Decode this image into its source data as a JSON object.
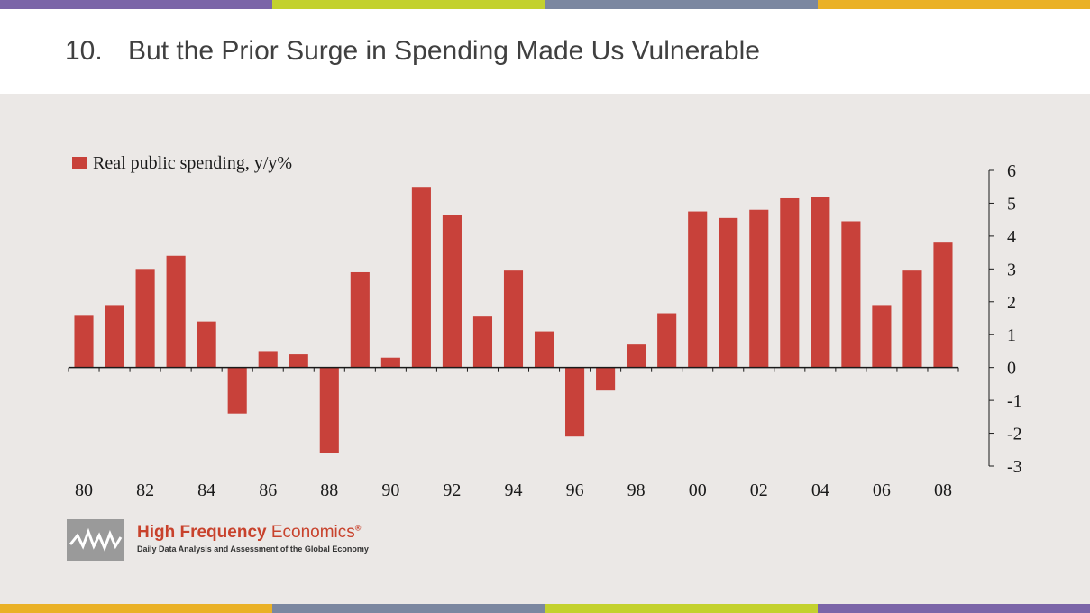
{
  "slide": {
    "number": "10.",
    "title": "But the Prior Surge in Spending Made Us Vulnerable"
  },
  "colors": {
    "bar": "#c8413a",
    "panel_background": "#ebe8e6",
    "strip": [
      "#7b65a8",
      "#c3d12e",
      "#7b87a0",
      "#eab126"
    ]
  },
  "logo": {
    "name_bold": "High Frequency",
    "name_light": "Economics",
    "mark": "®",
    "tagline": "Daily Data Analysis and Assessment of the Global Economy",
    "icon": "zigzag-line-icon"
  },
  "chart_data": {
    "type": "bar",
    "legend": "Real public spending, y/y%",
    "legend_position": "top-left",
    "x": [
      1980,
      1981,
      1982,
      1983,
      1984,
      1985,
      1986,
      1987,
      1988,
      1989,
      1990,
      1991,
      1992,
      1993,
      1994,
      1995,
      1996,
      1997,
      1998,
      1999,
      2000,
      2001,
      2002,
      2003,
      2004,
      2005,
      2006,
      2007,
      2008
    ],
    "values": [
      1.6,
      1.9,
      3.0,
      3.4,
      1.4,
      -1.4,
      0.5,
      0.4,
      -2.6,
      2.9,
      0.3,
      5.5,
      4.65,
      1.55,
      2.95,
      1.1,
      -2.1,
      -0.7,
      0.7,
      1.65,
      4.75,
      4.55,
      4.8,
      5.15,
      5.2,
      4.45,
      1.9,
      2.95,
      3.8
    ],
    "x_tick_labels": [
      "80",
      "82",
      "84",
      "86",
      "88",
      "90",
      "92",
      "94",
      "96",
      "98",
      "00",
      "02",
      "04",
      "06",
      "08"
    ],
    "y_ticks": [
      "6",
      "5",
      "4",
      "3",
      "2",
      "1",
      "0",
      "-1",
      "-2",
      "-3"
    ],
    "ylim": [
      -3,
      6
    ],
    "y_axis_side": "right",
    "grid": false
  }
}
